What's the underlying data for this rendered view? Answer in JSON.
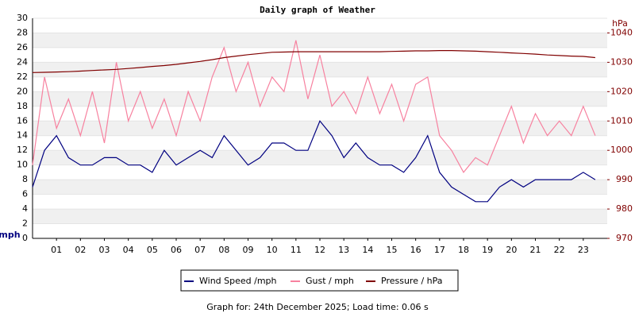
{
  "chart_data": {
    "type": "line",
    "title": "Daily graph of Weather",
    "y_label": "mph",
    "y2_label": "hPa",
    "footer": "Graph for: 24th December 2025; Load time: 0.06 s",
    "x": [
      0,
      0.5,
      1,
      1.5,
      2,
      2.5,
      3,
      3.5,
      4,
      4.5,
      5,
      5.5,
      6,
      6.5,
      7,
      7.5,
      8,
      8.5,
      9,
      9.5,
      10,
      10.5,
      11,
      11.5,
      12,
      12.5,
      13,
      13.5,
      14,
      14.5,
      15,
      15.5,
      16,
      16.5,
      17,
      17.5,
      18,
      18.5,
      19,
      19.5,
      20,
      20.5,
      21,
      21.5,
      22,
      22.5,
      23,
      23.5
    ],
    "xlim": [
      0,
      24
    ],
    "xticks": [
      {
        "value": 1,
        "label": "01"
      },
      {
        "value": 2,
        "label": "02"
      },
      {
        "value": 3,
        "label": "03"
      },
      {
        "value": 4,
        "label": "04"
      },
      {
        "value": 5,
        "label": "05"
      },
      {
        "value": 6,
        "label": "06"
      },
      {
        "value": 7,
        "label": "07"
      },
      {
        "value": 8,
        "label": "08"
      },
      {
        "value": 9,
        "label": "09"
      },
      10,
      11,
      12,
      13,
      14,
      15,
      16,
      17,
      18,
      19,
      20,
      21,
      22,
      23
    ],
    "ylim": [
      0,
      30
    ],
    "yticks": [
      0,
      2,
      4,
      6,
      8,
      10,
      12,
      14,
      16,
      18,
      20,
      22,
      24,
      26,
      28,
      30
    ],
    "y2lim": [
      970,
      1045
    ],
    "y2ticks": [
      970,
      980,
      990,
      1000,
      1010,
      1020,
      1030,
      1040
    ],
    "series": [
      {
        "name": "Wind Speed /mph",
        "color": "#000080",
        "values": [
          7,
          12,
          14,
          11,
          10,
          10,
          11,
          11,
          10,
          10,
          9,
          12,
          10,
          11,
          12,
          11,
          14,
          12,
          10,
          11,
          13,
          13,
          12,
          12,
          16,
          14,
          11,
          13,
          11,
          10,
          10,
          9,
          11,
          14,
          9,
          7,
          6,
          5,
          5,
          7,
          8,
          7,
          8,
          8,
          8,
          8,
          9,
          8
        ]
      },
      {
        "name": "Gust / mph",
        "color": "#f7819f",
        "values": [
          10,
          22,
          15,
          19,
          14,
          20,
          13,
          24,
          16,
          20,
          15,
          19,
          14,
          20,
          16,
          22,
          26,
          20,
          24,
          18,
          22,
          20,
          27,
          19,
          25,
          18,
          20,
          17,
          22,
          17,
          21,
          16,
          21,
          22,
          14,
          12,
          9,
          11,
          10,
          14,
          18,
          13,
          17,
          14,
          16,
          14,
          18,
          14
        ]
      },
      {
        "name": "Pressure / hPa",
        "color": "#800000",
        "axis": "y2",
        "values": [
          1026.5,
          1026.6,
          1026.7,
          1026.8,
          1027,
          1027.2,
          1027.4,
          1027.6,
          1027.9,
          1028.2,
          1028.6,
          1028.9,
          1029.3,
          1029.8,
          1030.3,
          1030.9,
          1031.6,
          1032.1,
          1032.6,
          1033,
          1033.4,
          1033.5,
          1033.6,
          1033.6,
          1033.6,
          1033.6,
          1033.6,
          1033.6,
          1033.6,
          1033.6,
          1033.7,
          1033.8,
          1033.9,
          1033.9,
          1034,
          1034,
          1033.9,
          1033.8,
          1033.6,
          1033.4,
          1033.2,
          1033,
          1032.8,
          1032.5,
          1032.3,
          1032.1,
          1032,
          1031.6
        ]
      }
    ]
  }
}
